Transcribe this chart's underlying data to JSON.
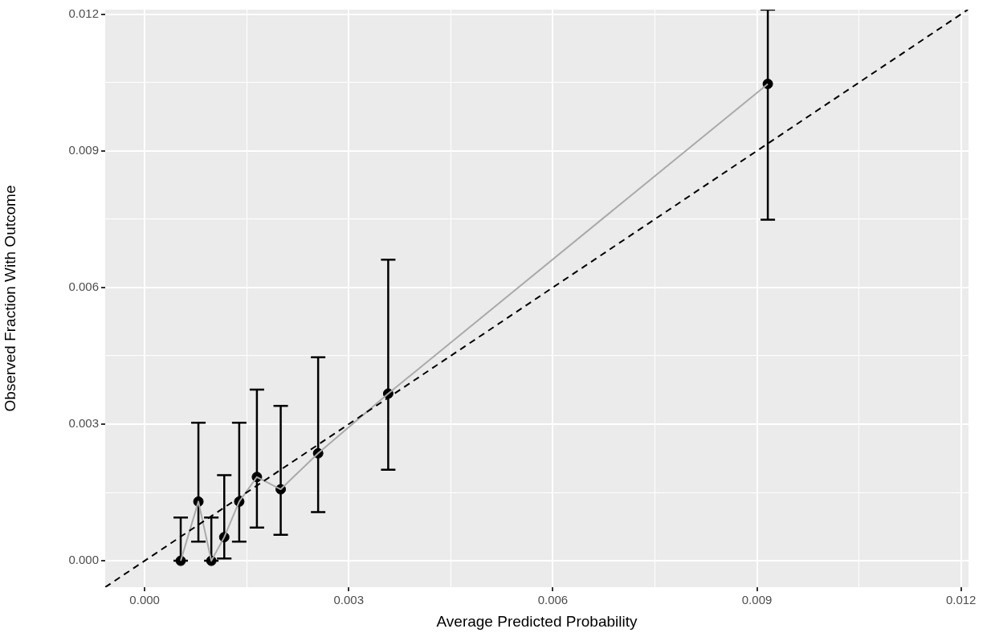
{
  "chart_data": {
    "type": "scatter",
    "xlabel": "Average Predicted Probability",
    "ylabel": "Observed Fraction With Outcome",
    "xlim": [
      -0.00058,
      0.01211
    ],
    "ylim": [
      -0.00058,
      0.0121
    ],
    "xticks": [
      {
        "value": 0,
        "label": "0.000"
      },
      {
        "value": 0.0015,
        "label": null
      },
      0.003,
      {
        "value": 0.0045,
        "label": null
      },
      0.006,
      {
        "value": 0.0075,
        "label": null
      },
      0.009,
      {
        "value": 0.0105,
        "label": null
      },
      0.012
    ],
    "yticks": [
      {
        "value": 0,
        "label": "0.000"
      },
      {
        "value": 0.0015,
        "label": null
      },
      0.003,
      {
        "value": 0.0045,
        "label": null
      },
      0.006,
      {
        "value": 0.0075,
        "label": null
      },
      0.009,
      {
        "value": 0.0105,
        "label": null
      },
      0.012
    ],
    "grid": true,
    "legend": false,
    "series": [
      {
        "type": "line",
        "color": "#000000",
        "line_style": "dashed",
        "marker": "none",
        "x": [
          -0.00058,
          0.0121
        ],
        "values": [
          -0.00058,
          0.0121
        ]
      },
      {
        "type": "line",
        "color": "#aaaaaa",
        "marker": "none",
        "x": [
          0.00053,
          0.00079,
          0.00098,
          0.00117,
          0.00139,
          0.00165,
          0.002,
          0.00255,
          0.00358,
          0.00916
        ],
        "values": [
          0.0,
          0.0013,
          0.0,
          0.00052,
          0.0013,
          0.00184,
          0.00157,
          0.00236,
          0.00367,
          0.01047
        ]
      },
      {
        "color": "#000000",
        "marker": "circle",
        "x": [
          0.00053,
          0.00079,
          0.00098,
          0.00117,
          0.00139,
          0.00165,
          0.002,
          0.00255,
          0.00358,
          0.00916
        ],
        "values": [
          0.0,
          0.0013,
          0.0,
          0.00052,
          0.0013,
          0.00184,
          0.00157,
          0.00236,
          0.00367,
          0.01047
        ],
        "errors": [
          [
            0.0,
            0.00095
          ],
          [
            0.00042,
            0.00303
          ],
          [
            0.0,
            0.00095
          ],
          [
            5e-05,
            0.00188
          ],
          [
            0.00042,
            0.00303
          ],
          [
            0.00073,
            0.00376
          ],
          [
            0.00057,
            0.0034
          ],
          [
            0.00107,
            0.00447
          ],
          [
            0.002,
            0.00661
          ],
          [
            0.00749,
            0.0121
          ]
        ]
      }
    ]
  }
}
